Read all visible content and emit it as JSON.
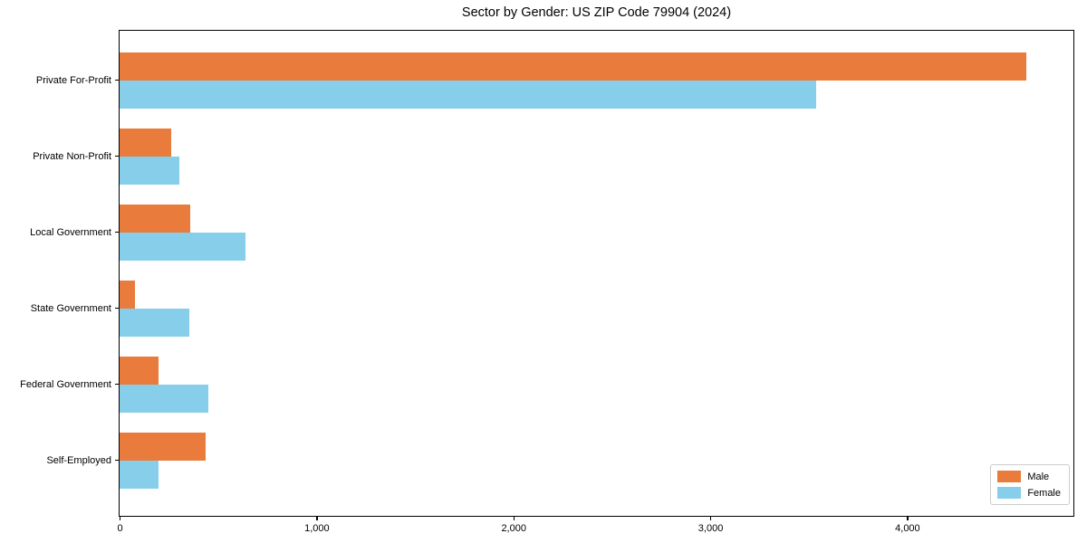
{
  "chart_data": {
    "type": "bar",
    "orientation": "horizontal",
    "title": "Sector by Gender: US ZIP Code 79904 (2024)",
    "categories": [
      "Private For-Profit",
      "Private Non-Profit",
      "Local Government",
      "State Government",
      "Federal Government",
      "Self-Employed"
    ],
    "series": [
      {
        "name": "Male",
        "color": "#E97B3C",
        "values": [
          4605,
          260,
          360,
          80,
          200,
          435
        ]
      },
      {
        "name": "Female",
        "color": "#87CEEB",
        "values": [
          3540,
          305,
          640,
          355,
          450,
          200
        ]
      }
    ],
    "xlabel": "",
    "ylabel": "",
    "xlim": [
      0,
      4840
    ],
    "x_ticks": [
      0,
      1000,
      2000,
      3000,
      4000
    ],
    "x_tick_labels": [
      "0",
      "1,000",
      "2,000",
      "3,000",
      "4,000"
    ],
    "grid": false,
    "legend_position": "lower right"
  }
}
